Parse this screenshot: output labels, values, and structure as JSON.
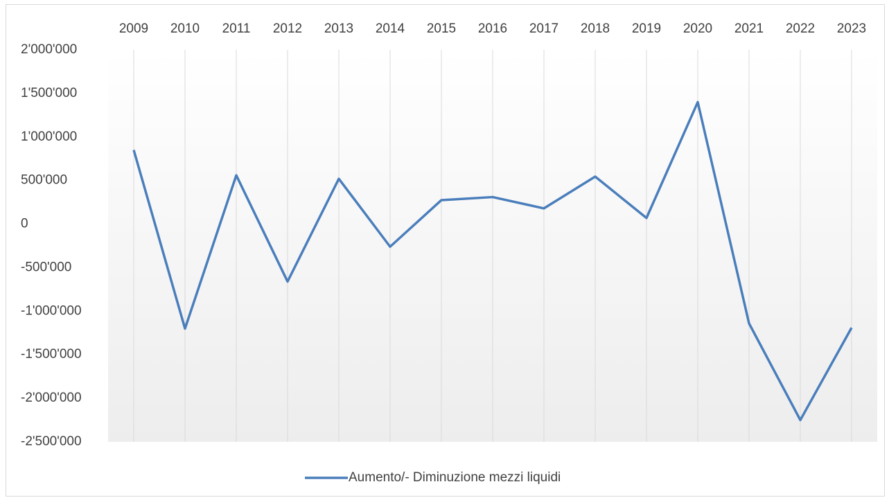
{
  "chart_data": {
    "type": "line",
    "categories": [
      "2009",
      "2010",
      "2011",
      "2012",
      "2013",
      "2014",
      "2015",
      "2016",
      "2017",
      "2018",
      "2019",
      "2020",
      "2021",
      "2022",
      "2023"
    ],
    "series": [
      {
        "name": "Aumento/- Diminuzione mezzi liquidi",
        "color": "#4a7ebb",
        "values": [
          850000,
          -1200000,
          560000,
          -660000,
          520000,
          -260000,
          275000,
          310000,
          180000,
          545000,
          70000,
          1400000,
          -1140000,
          -2250000,
          -1190000
        ]
      }
    ],
    "ylim": [
      -2500000,
      2000000
    ],
    "yticks": [
      {
        "value": -2500000,
        "label": "-2'500'000"
      },
      {
        "value": -2000000,
        "label": "-2'000'000"
      },
      {
        "value": -1500000,
        "label": "-1'500'000"
      },
      {
        "value": -1000000,
        "label": "-1'000'000"
      },
      {
        "value": -500000,
        "label": "-500'000"
      },
      0,
      {
        "value": 500000,
        "label": "500'000"
      },
      {
        "value": 1000000,
        "label": "1'000'000"
      },
      {
        "value": 1500000,
        "label": "1'500'000"
      },
      {
        "value": 2000000,
        "label": "2'000'000"
      }
    ],
    "grid": true,
    "legend": "bottom"
  }
}
